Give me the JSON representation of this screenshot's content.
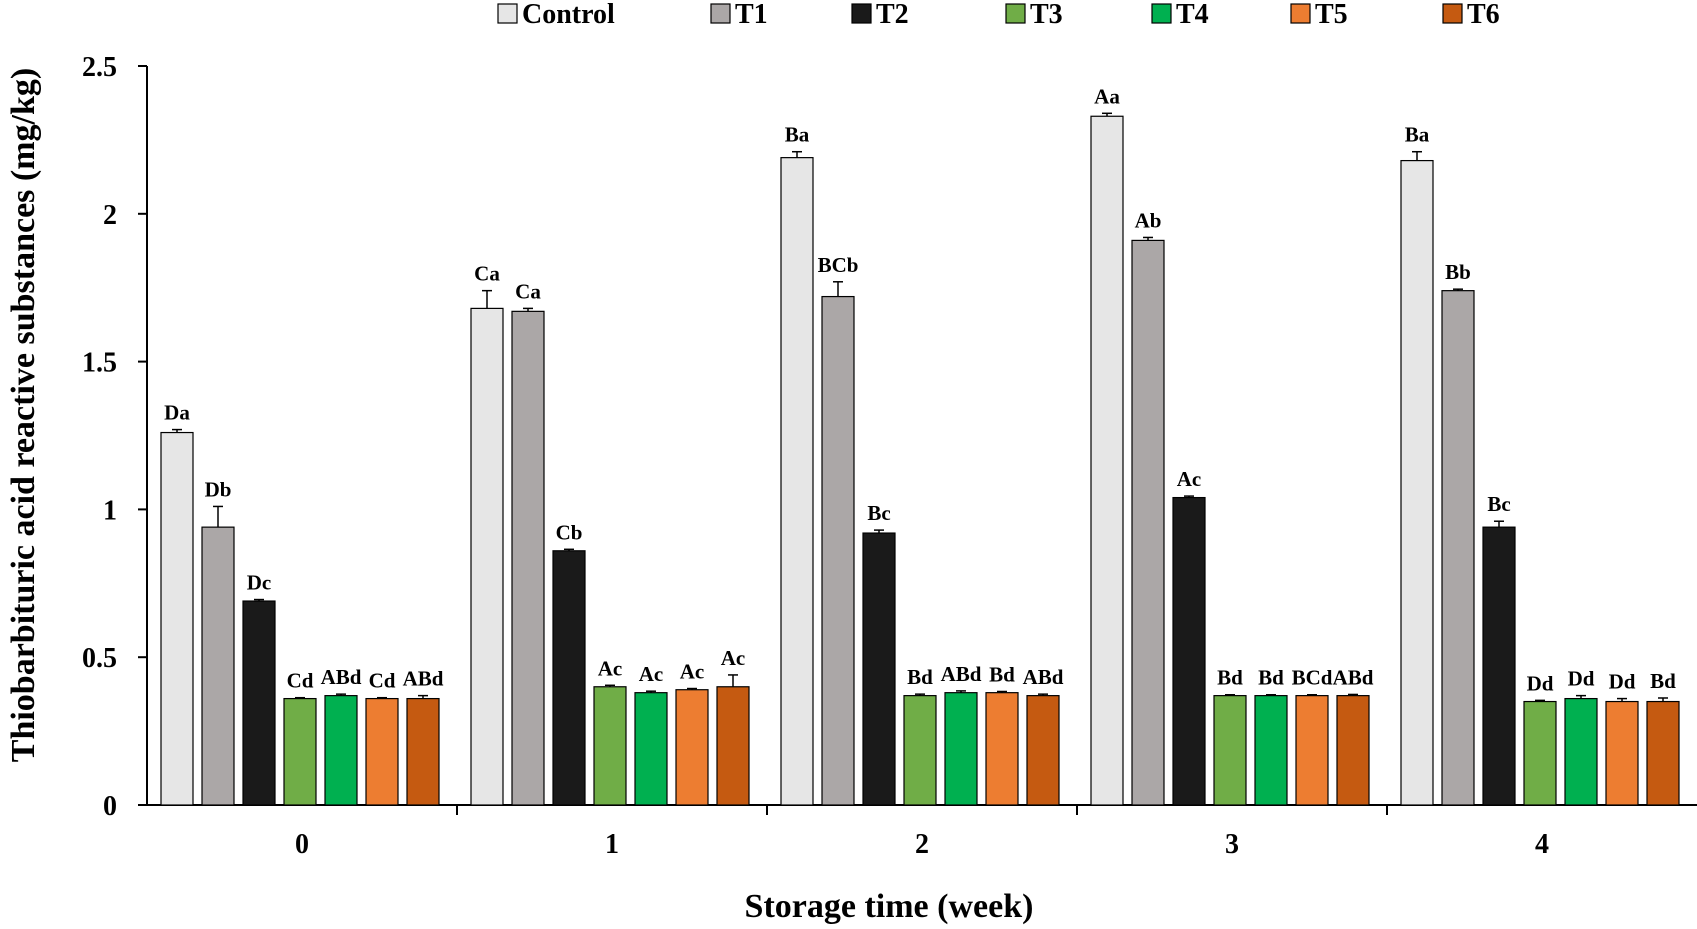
{
  "chart_data": {
    "type": "bar",
    "xlabel": "Storage time (week)",
    "ylabel": "Thiobarbituric acid reactive substances (mg/kg)",
    "ylim": [
      0,
      2.5
    ],
    "yticks": [
      "0",
      "0.5",
      "1",
      "1.5",
      "2",
      "2.5"
    ],
    "grid": false,
    "legend_position": "top",
    "categories": [
      "0",
      "1",
      "2",
      "3",
      "4"
    ],
    "series": [
      {
        "name": "Control",
        "color": "#e6e6e6",
        "values": [
          1.26,
          1.68,
          2.19,
          2.33,
          2.18
        ],
        "errors": [
          0.01,
          0.06,
          0.02,
          0.01,
          0.03
        ],
        "labels": [
          "Da",
          "Ca",
          "Ba",
          "Aa",
          "Ba"
        ]
      },
      {
        "name": "T1",
        "color": "#aba7a7",
        "values": [
          0.94,
          1.67,
          1.72,
          1.91,
          1.74
        ],
        "errors": [
          0.07,
          0.01,
          0.05,
          0.01,
          0.005
        ],
        "labels": [
          "Db",
          "Ca",
          "BCb",
          "Ab",
          "Bb"
        ]
      },
      {
        "name": "T2",
        "color": "#1a1a1a",
        "values": [
          0.69,
          0.86,
          0.92,
          1.04,
          0.94
        ],
        "errors": [
          0.005,
          0.005,
          0.01,
          0.005,
          0.02
        ],
        "labels": [
          "Dc",
          "Cb",
          "Bc",
          "Ac",
          "Bc"
        ]
      },
      {
        "name": "T3",
        "color": "#70ad47",
        "values": [
          0.36,
          0.4,
          0.37,
          0.37,
          0.35
        ],
        "errors": [
          0.003,
          0.005,
          0.005,
          0.003,
          0.004
        ],
        "labels": [
          "Cd",
          "Ac",
          "Bd",
          "Bd",
          "Dd"
        ]
      },
      {
        "name": "T4",
        "color": "#00b050",
        "values": [
          0.37,
          0.38,
          0.38,
          0.37,
          0.36
        ],
        "errors": [
          0.005,
          0.005,
          0.006,
          0.003,
          0.01
        ],
        "labels": [
          "ABd",
          "Ac",
          "ABd",
          "Bd",
          "Dd"
        ]
      },
      {
        "name": "T5",
        "color": "#ed7d31",
        "values": [
          0.36,
          0.39,
          0.38,
          0.37,
          0.35
        ],
        "errors": [
          0.003,
          0.004,
          0.004,
          0.003,
          0.01
        ],
        "labels": [
          "Cd",
          "Ac",
          "Bd",
          "BCd",
          "Dd"
        ]
      },
      {
        "name": "T6",
        "color": "#c55a11",
        "values": [
          0.36,
          0.4,
          0.37,
          0.37,
          0.35
        ],
        "errors": [
          0.01,
          0.04,
          0.005,
          0.004,
          0.012
        ],
        "labels": [
          "ABd",
          "Ac",
          "ABd",
          "ABd",
          "Bd"
        ]
      }
    ]
  }
}
